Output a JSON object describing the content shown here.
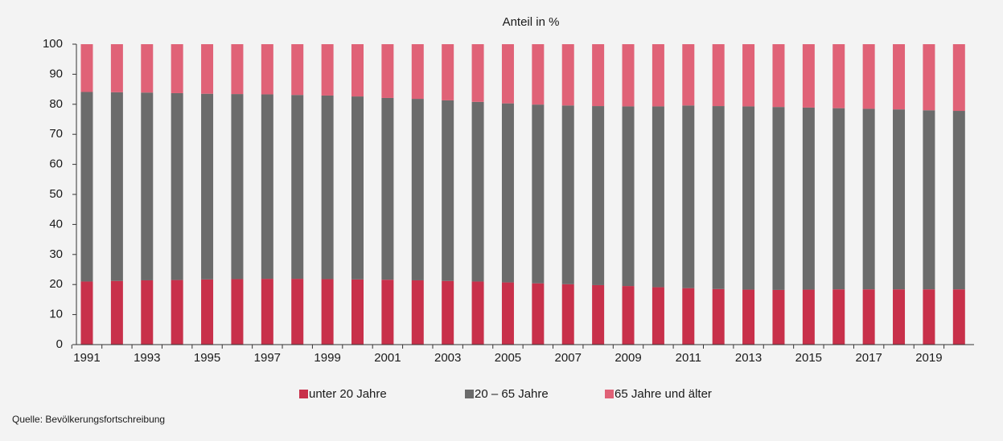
{
  "chart_data": {
    "type": "stacked-bar",
    "title": "Anteil in %",
    "categories": [
      "1991",
      null,
      "1993",
      null,
      "1995",
      null,
      "1997",
      null,
      "1999",
      null,
      "2001",
      null,
      "2003",
      null,
      "2005",
      null,
      "2007",
      null,
      "2009",
      null,
      "2011",
      null,
      "2013",
      null,
      "2015",
      null,
      "2017",
      null,
      "2019",
      null
    ],
    "series": [
      {
        "name": "unter 20 Jahre",
        "color": "#c8304a",
        "values": [
          21.0,
          21.2,
          21.4,
          21.5,
          21.7,
          21.8,
          21.9,
          21.9,
          21.8,
          21.7,
          21.6,
          21.4,
          21.2,
          21.0,
          20.7,
          20.4,
          20.1,
          19.8,
          19.5,
          19.1,
          18.8,
          18.5,
          18.3,
          18.2,
          18.3,
          18.4,
          18.4,
          18.4,
          18.4,
          18.4
        ]
      },
      {
        "name": "20 – 65 Jahre",
        "color": "#6b6b6b",
        "values": [
          63.1,
          62.8,
          62.5,
          62.2,
          61.8,
          61.6,
          61.4,
          61.2,
          61.1,
          60.9,
          60.5,
          60.4,
          60.1,
          59.8,
          59.6,
          59.5,
          59.5,
          59.6,
          59.8,
          60.2,
          60.8,
          60.9,
          61.0,
          60.9,
          60.6,
          60.3,
          60.1,
          59.9,
          59.6,
          59.4
        ]
      },
      {
        "name": "65 Jahre und älter",
        "color": "#e06277",
        "values": [
          15.9,
          16.0,
          16.1,
          16.3,
          16.5,
          16.6,
          16.7,
          16.9,
          17.1,
          17.4,
          17.9,
          18.2,
          18.7,
          19.2,
          19.7,
          20.1,
          20.4,
          20.6,
          20.7,
          20.7,
          20.4,
          20.6,
          20.7,
          20.9,
          21.1,
          21.3,
          21.5,
          21.7,
          22.0,
          22.2
        ]
      }
    ],
    "ylim": [
      0,
      100
    ],
    "yticks": [
      0,
      10,
      20,
      30,
      40,
      50,
      60,
      70,
      80,
      90,
      100
    ],
    "source": "Quelle: Bevölkerungsfortschreibung"
  }
}
